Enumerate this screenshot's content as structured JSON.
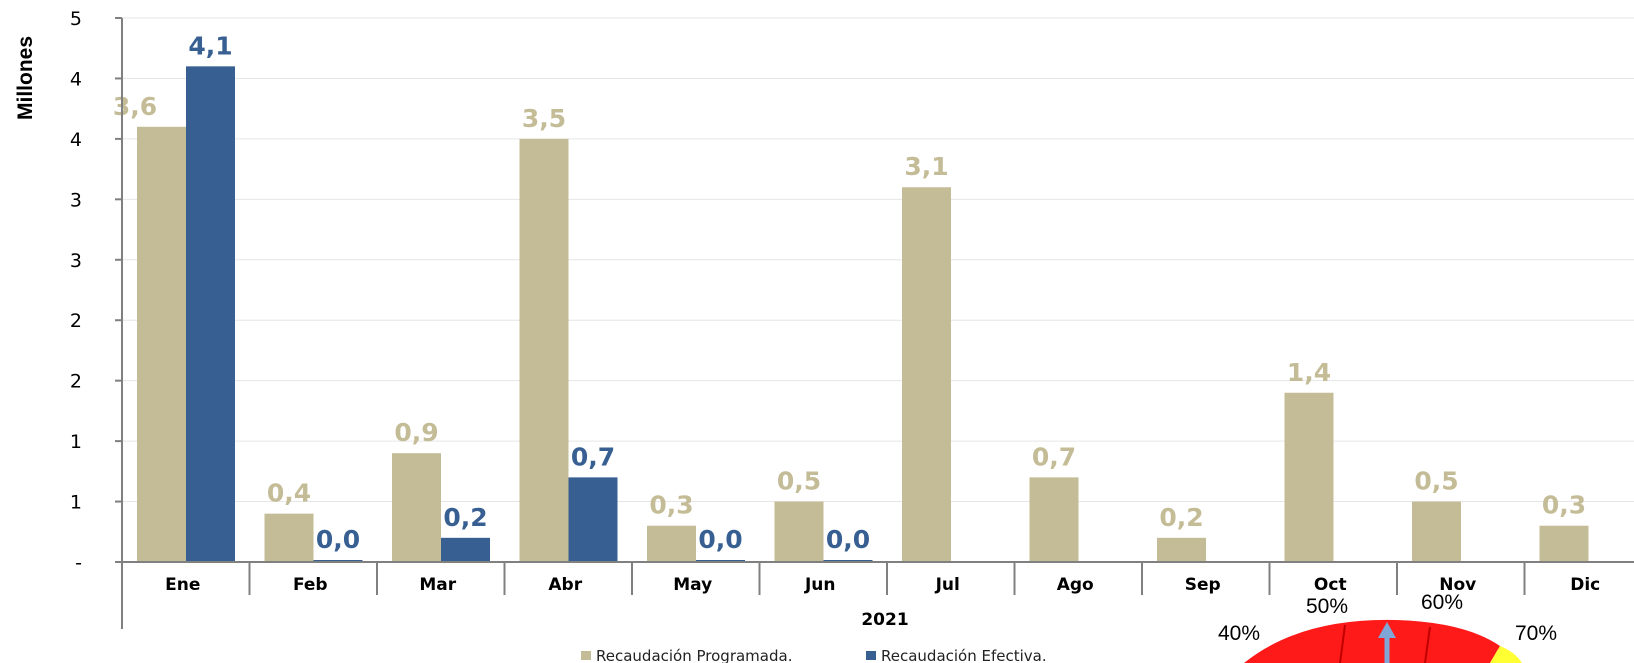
{
  "chart_data": {
    "type": "bar",
    "ylabel": "Millones",
    "xlabel": "2021",
    "y_tick_labels": [
      "-",
      "1",
      "1",
      "2",
      "2",
      "3",
      "3",
      "4",
      "4",
      "5"
    ],
    "ylim": [
      0,
      4.5
    ],
    "grid": true,
    "legend_position": "bottom",
    "categories": [
      "Ene",
      "Feb",
      "Mar",
      "Abr",
      "May",
      "Jun",
      "Jul",
      "Ago",
      "Sep",
      "Oct",
      "Nov",
      "Dic"
    ],
    "series": [
      {
        "name": "Recaudación Programada.",
        "color": "#c4bc96",
        "values": [
          3.6,
          0.4,
          0.9,
          3.5,
          0.3,
          0.5,
          3.1,
          0.7,
          0.2,
          1.4,
          0.5,
          0.3
        ],
        "labels": [
          "3,6",
          "0,4",
          "0,9",
          "3,5",
          "0,3",
          "0,5",
          "3,1",
          "0,7",
          "0,2",
          "1,4",
          "0,5",
          "0,3"
        ]
      },
      {
        "name": "Recaudación Efectiva.",
        "color": "#375f92",
        "values": [
          4.1,
          0.0,
          0.2,
          0.7,
          0.0,
          0.0,
          null,
          null,
          null,
          null,
          null,
          null
        ],
        "labels": [
          "4,1",
          "0,0",
          "0,2",
          "0,7",
          "0,0",
          "0,0",
          null,
          null,
          null,
          null,
          null,
          null
        ]
      }
    ]
  },
  "gauge": {
    "ticks": [
      "40%",
      "50%",
      "60%",
      "70%"
    ],
    "colors": {
      "red": "#ff1a1a",
      "yellow": "#ffff33",
      "needle": "#7fa6d6"
    }
  }
}
